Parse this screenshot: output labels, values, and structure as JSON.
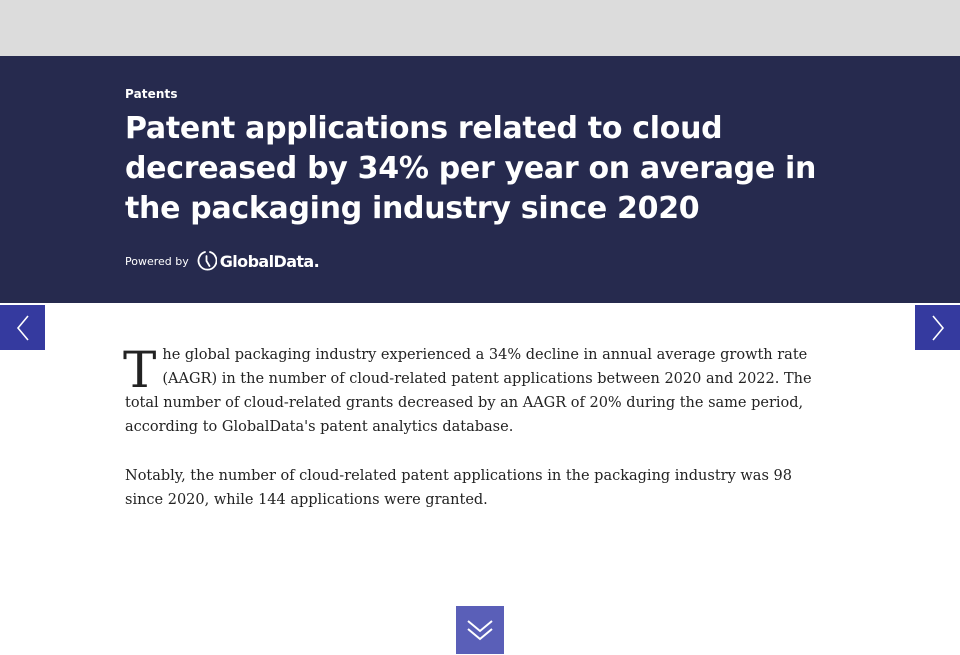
{
  "header": {
    "category": "Patents",
    "headline": "Patent applications related to cloud decreased by 34% per year on average in the packaging industry since 2020",
    "powered_by": "Powered by",
    "brand": "GlobalData."
  },
  "article": {
    "dropcap": "T",
    "paragraph1_rest": "he global packaging industry experienced a 34% decline in annual average growth rate (AAGR) in the number of cloud-related patent applications between 2020 and 2022. The total number of cloud-related grants decreased by an AAGR of 20% during the same period, according to GlobalData's patent analytics database.",
    "paragraph2": "Notably, the number of cloud-related patent applications in the packaging industry was 98 since 2020, while 144 applications were granted."
  },
  "nav": {
    "prev_icon": "chevron-left-icon",
    "next_icon": "chevron-right-icon",
    "scroll_icon": "double-chevron-down-icon"
  },
  "colors": {
    "top_bar": "#dcdcdc",
    "hero_background": "#262a4e",
    "nav_arrow": "#353a9f",
    "scroll_button": "#5a5fb8",
    "body_text": "#222222"
  }
}
